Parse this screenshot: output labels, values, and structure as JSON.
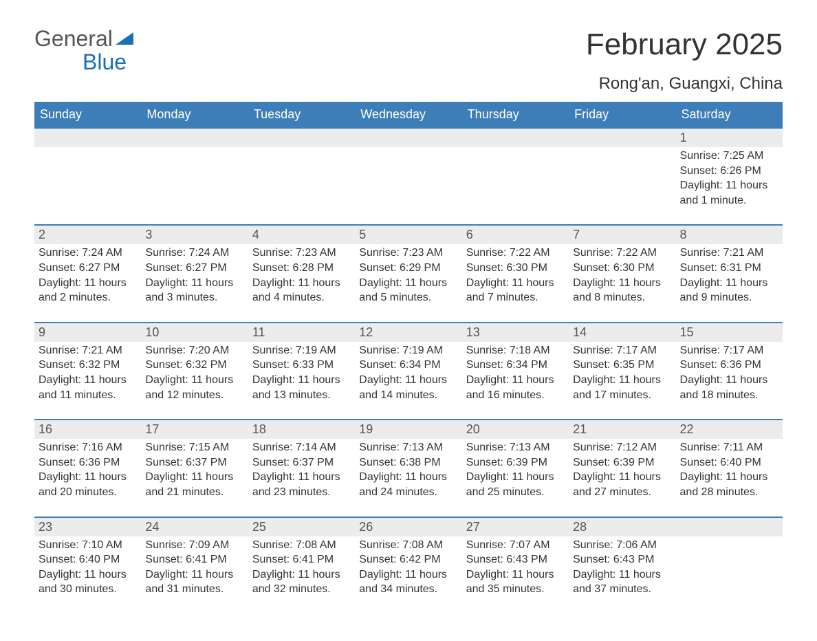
{
  "brand": {
    "word1": "General",
    "word2": "Blue"
  },
  "title": "February 2025",
  "location": "Rong'an, Guangxi, China",
  "colors": {
    "header_bg": "#3d7db8",
    "header_text": "#ffffff",
    "date_bar_bg": "#ececec",
    "date_bar_border": "#3d7db8",
    "body_text": "#333333",
    "brand_blue": "#1a6fb5",
    "brand_gray": "#555555",
    "page_bg": "#ffffff"
  },
  "typography": {
    "title_fontsize": 44,
    "location_fontsize": 24,
    "header_fontsize": 18,
    "date_fontsize": 18,
    "body_fontsize": 16
  },
  "layout": {
    "columns": 7,
    "weeks": 5,
    "first_day_column": 6
  },
  "day_headers": [
    "Sunday",
    "Monday",
    "Tuesday",
    "Wednesday",
    "Thursday",
    "Friday",
    "Saturday"
  ],
  "weeks": [
    [
      null,
      null,
      null,
      null,
      null,
      null,
      {
        "date": "1",
        "sunrise": "Sunrise: 7:25 AM",
        "sunset": "Sunset: 6:26 PM",
        "daylight": "Daylight: 11 hours and 1 minute."
      }
    ],
    [
      {
        "date": "2",
        "sunrise": "Sunrise: 7:24 AM",
        "sunset": "Sunset: 6:27 PM",
        "daylight": "Daylight: 11 hours and 2 minutes."
      },
      {
        "date": "3",
        "sunrise": "Sunrise: 7:24 AM",
        "sunset": "Sunset: 6:27 PM",
        "daylight": "Daylight: 11 hours and 3 minutes."
      },
      {
        "date": "4",
        "sunrise": "Sunrise: 7:23 AM",
        "sunset": "Sunset: 6:28 PM",
        "daylight": "Daylight: 11 hours and 4 minutes."
      },
      {
        "date": "5",
        "sunrise": "Sunrise: 7:23 AM",
        "sunset": "Sunset: 6:29 PM",
        "daylight": "Daylight: 11 hours and 5 minutes."
      },
      {
        "date": "6",
        "sunrise": "Sunrise: 7:22 AM",
        "sunset": "Sunset: 6:30 PM",
        "daylight": "Daylight: 11 hours and 7 minutes."
      },
      {
        "date": "7",
        "sunrise": "Sunrise: 7:22 AM",
        "sunset": "Sunset: 6:30 PM",
        "daylight": "Daylight: 11 hours and 8 minutes."
      },
      {
        "date": "8",
        "sunrise": "Sunrise: 7:21 AM",
        "sunset": "Sunset: 6:31 PM",
        "daylight": "Daylight: 11 hours and 9 minutes."
      }
    ],
    [
      {
        "date": "9",
        "sunrise": "Sunrise: 7:21 AM",
        "sunset": "Sunset: 6:32 PM",
        "daylight": "Daylight: 11 hours and 11 minutes."
      },
      {
        "date": "10",
        "sunrise": "Sunrise: 7:20 AM",
        "sunset": "Sunset: 6:32 PM",
        "daylight": "Daylight: 11 hours and 12 minutes."
      },
      {
        "date": "11",
        "sunrise": "Sunrise: 7:19 AM",
        "sunset": "Sunset: 6:33 PM",
        "daylight": "Daylight: 11 hours and 13 minutes."
      },
      {
        "date": "12",
        "sunrise": "Sunrise: 7:19 AM",
        "sunset": "Sunset: 6:34 PM",
        "daylight": "Daylight: 11 hours and 14 minutes."
      },
      {
        "date": "13",
        "sunrise": "Sunrise: 7:18 AM",
        "sunset": "Sunset: 6:34 PM",
        "daylight": "Daylight: 11 hours and 16 minutes."
      },
      {
        "date": "14",
        "sunrise": "Sunrise: 7:17 AM",
        "sunset": "Sunset: 6:35 PM",
        "daylight": "Daylight: 11 hours and 17 minutes."
      },
      {
        "date": "15",
        "sunrise": "Sunrise: 7:17 AM",
        "sunset": "Sunset: 6:36 PM",
        "daylight": "Daylight: 11 hours and 18 minutes."
      }
    ],
    [
      {
        "date": "16",
        "sunrise": "Sunrise: 7:16 AM",
        "sunset": "Sunset: 6:36 PM",
        "daylight": "Daylight: 11 hours and 20 minutes."
      },
      {
        "date": "17",
        "sunrise": "Sunrise: 7:15 AM",
        "sunset": "Sunset: 6:37 PM",
        "daylight": "Daylight: 11 hours and 21 minutes."
      },
      {
        "date": "18",
        "sunrise": "Sunrise: 7:14 AM",
        "sunset": "Sunset: 6:37 PM",
        "daylight": "Daylight: 11 hours and 23 minutes."
      },
      {
        "date": "19",
        "sunrise": "Sunrise: 7:13 AM",
        "sunset": "Sunset: 6:38 PM",
        "daylight": "Daylight: 11 hours and 24 minutes."
      },
      {
        "date": "20",
        "sunrise": "Sunrise: 7:13 AM",
        "sunset": "Sunset: 6:39 PM",
        "daylight": "Daylight: 11 hours and 25 minutes."
      },
      {
        "date": "21",
        "sunrise": "Sunrise: 7:12 AM",
        "sunset": "Sunset: 6:39 PM",
        "daylight": "Daylight: 11 hours and 27 minutes."
      },
      {
        "date": "22",
        "sunrise": "Sunrise: 7:11 AM",
        "sunset": "Sunset: 6:40 PM",
        "daylight": "Daylight: 11 hours and 28 minutes."
      }
    ],
    [
      {
        "date": "23",
        "sunrise": "Sunrise: 7:10 AM",
        "sunset": "Sunset: 6:40 PM",
        "daylight": "Daylight: 11 hours and 30 minutes."
      },
      {
        "date": "24",
        "sunrise": "Sunrise: 7:09 AM",
        "sunset": "Sunset: 6:41 PM",
        "daylight": "Daylight: 11 hours and 31 minutes."
      },
      {
        "date": "25",
        "sunrise": "Sunrise: 7:08 AM",
        "sunset": "Sunset: 6:41 PM",
        "daylight": "Daylight: 11 hours and 32 minutes."
      },
      {
        "date": "26",
        "sunrise": "Sunrise: 7:08 AM",
        "sunset": "Sunset: 6:42 PM",
        "daylight": "Daylight: 11 hours and 34 minutes."
      },
      {
        "date": "27",
        "sunrise": "Sunrise: 7:07 AM",
        "sunset": "Sunset: 6:43 PM",
        "daylight": "Daylight: 11 hours and 35 minutes."
      },
      {
        "date": "28",
        "sunrise": "Sunrise: 7:06 AM",
        "sunset": "Sunset: 6:43 PM",
        "daylight": "Daylight: 11 hours and 37 minutes."
      },
      null
    ]
  ]
}
